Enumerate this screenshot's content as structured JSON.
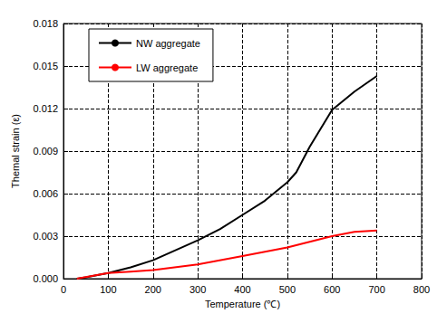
{
  "chart_data": {
    "type": "line",
    "x_label": "Temperature (℃)",
    "y_label": "Themal strain (ε)",
    "xlim": [
      0,
      800
    ],
    "xticks": [
      0,
      100,
      200,
      300,
      400,
      500,
      600,
      700,
      800
    ],
    "ylim": [
      0,
      0.018
    ],
    "yticks": [
      {
        "value": 0,
        "label": "0.000"
      },
      0.003,
      0.006,
      0.009,
      0.012,
      0.015,
      0.018
    ],
    "grid": true,
    "legend": "upper left",
    "series": [
      {
        "name": "NW aggregate",
        "color": "#000000",
        "line_style": "solid",
        "x": [
          30,
          50,
          100,
          150,
          200,
          250,
          300,
          350,
          400,
          450,
          500,
          520,
          550,
          600,
          650,
          700
        ],
        "values": [
          0,
          0.0001,
          0.0004,
          0.0008,
          0.0013,
          0.002,
          0.0027,
          0.0035,
          0.0045,
          0.0055,
          0.0068,
          0.0075,
          0.0093,
          0.0119,
          0.0132,
          0.0143
        ]
      },
      {
        "name": "LW aggregate",
        "color": "#ff0000",
        "line_style": "solid",
        "x": [
          30,
          100,
          150,
          200,
          300,
          400,
          500,
          550,
          600,
          650,
          700
        ],
        "values": [
          0,
          0.0004,
          0.0005,
          0.0006,
          0.001,
          0.0016,
          0.0022,
          0.0026,
          0.003,
          0.0033,
          0.0034
        ]
      }
    ]
  }
}
